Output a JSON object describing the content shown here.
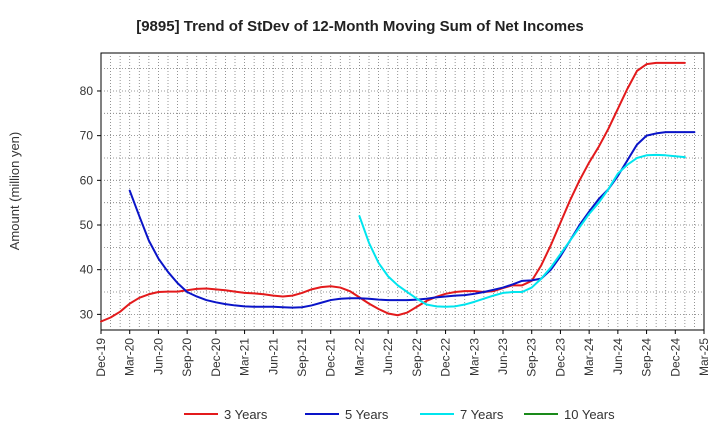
{
  "chart_data": {
    "type": "line",
    "title": "[9895]  Trend of StDev of 12-Month Moving Sum of Net Incomes",
    "xlabel": "",
    "ylabel": "Amount (million yen)",
    "x_tick_labels": [
      "Dec-19",
      "Mar-20",
      "Jun-20",
      "Sep-20",
      "Dec-20",
      "Mar-21",
      "Jun-21",
      "Sep-21",
      "Dec-21",
      "Mar-22",
      "Jun-22",
      "Sep-22",
      "Dec-22",
      "Mar-23",
      "Jun-23",
      "Sep-23",
      "Dec-23",
      "Mar-24",
      "Jun-24",
      "Sep-24",
      "Dec-24",
      "Mar-25"
    ],
    "y_ticks": [
      30,
      40,
      50,
      60,
      70,
      80
    ],
    "ylim": [
      26.5,
      88.5
    ],
    "grid": true,
    "legend_position": "bottom",
    "series": [
      {
        "name": "3 Years",
        "color": "#e31a1c",
        "start_month": 0,
        "values": [
          28.4,
          29.3,
          30.6,
          32.4,
          33.7,
          34.5,
          35.0,
          35.1,
          35.1,
          35.4,
          35.7,
          35.8,
          35.6,
          35.4,
          35.1,
          34.8,
          34.7,
          34.5,
          34.2,
          34.0,
          34.2,
          34.8,
          35.6,
          36.1,
          36.3,
          36.0,
          35.2,
          33.8,
          32.4,
          31.2,
          30.2,
          29.8,
          30.4,
          31.7,
          33.0,
          33.9,
          34.6,
          35.0,
          35.2,
          35.2,
          35.0,
          35.2,
          35.9,
          36.5,
          36.5,
          37.5,
          41.0,
          45.5,
          50.5,
          55.5,
          60.0,
          64.0,
          67.5,
          71.5,
          76.0,
          80.5,
          84.5,
          86.0,
          86.3,
          86.3,
          86.3,
          86.3
        ]
      },
      {
        "name": "5 Years",
        "color": "#0a14c8",
        "start_month": 3,
        "values": [
          57.7,
          52.0,
          46.5,
          42.5,
          39.5,
          37.0,
          35.0,
          34.0,
          33.2,
          32.7,
          32.3,
          32.0,
          31.8,
          31.7,
          31.7,
          31.7,
          31.6,
          31.5,
          31.6,
          32.0,
          32.6,
          33.2,
          33.5,
          33.6,
          33.6,
          33.5,
          33.3,
          33.2,
          33.2,
          33.2,
          33.3,
          33.5,
          33.8,
          34.0,
          34.2,
          34.3,
          34.6,
          35.0,
          35.5,
          36.0,
          36.7,
          37.5,
          37.6,
          38.0,
          40.0,
          43.0,
          46.5,
          50.0,
          53.0,
          55.8,
          58.0,
          61.0,
          64.5,
          68.0,
          70.0,
          70.5,
          70.8,
          70.8,
          70.8,
          70.8
        ]
      },
      {
        "name": "7 Years",
        "color": "#00e5ee",
        "start_month": 27,
        "values": [
          52.0,
          46.0,
          41.5,
          38.5,
          36.5,
          35.0,
          33.5,
          32.2,
          31.8,
          31.7,
          31.8,
          32.2,
          32.8,
          33.5,
          34.2,
          34.8,
          35.0,
          35.0,
          36.0,
          38.0,
          40.5,
          43.5,
          46.5,
          49.5,
          52.5,
          55.0,
          58.0,
          61.5,
          63.5,
          65.0,
          65.6,
          65.7,
          65.6,
          65.4,
          65.2
        ]
      },
      {
        "name": "10 Years",
        "color": "#1a8a1a",
        "start_month": 0,
        "values": []
      }
    ]
  }
}
